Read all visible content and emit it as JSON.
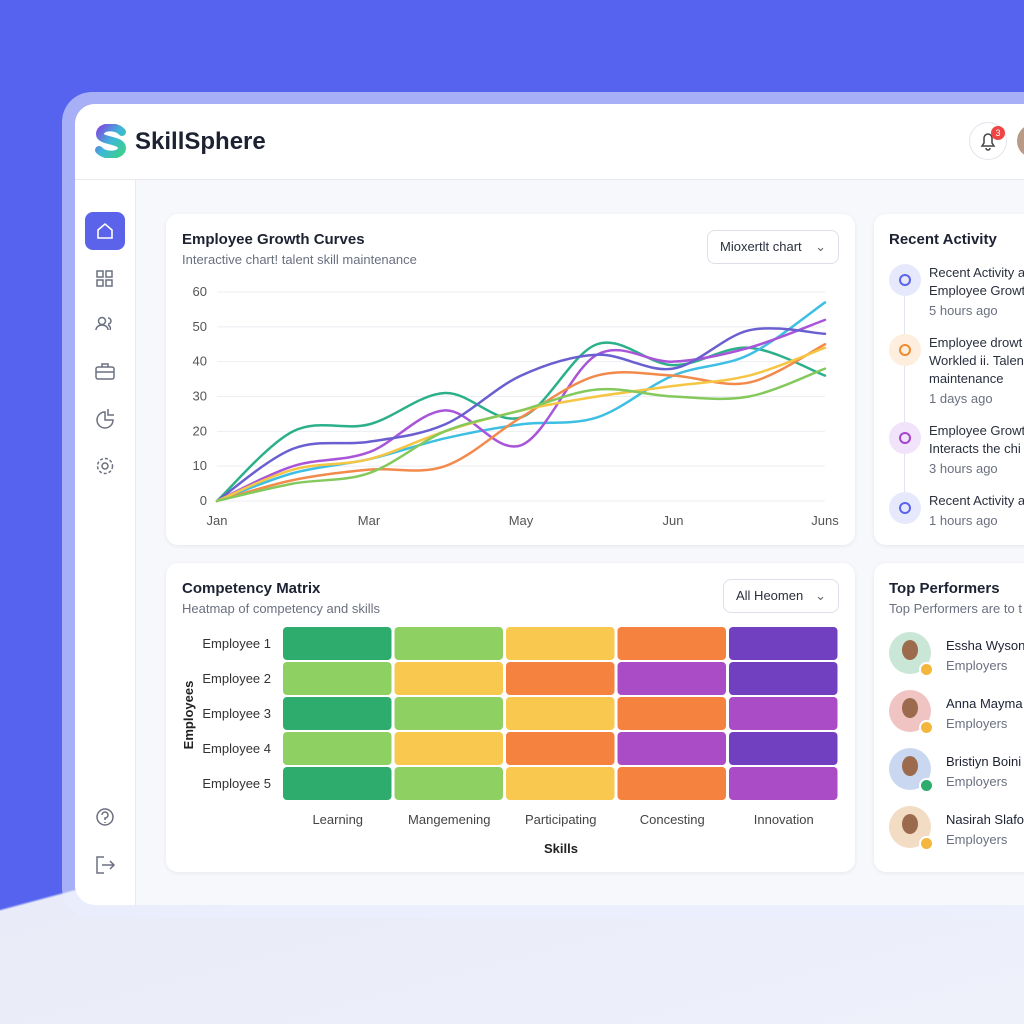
{
  "header": {
    "brand": "SkillSphere",
    "notification_count": "3"
  },
  "chart_data": [
    {
      "type": "line",
      "title": "Employee Growth Curves",
      "subtitle": "Interactive chart! talent skill maintenance",
      "dropdown": "Mioxertlt chart",
      "categories": [
        "Jan",
        null,
        "Mar",
        null,
        "May",
        null,
        "Jun",
        null,
        "Juns"
      ],
      "ylim": [
        0,
        60
      ],
      "yticks": [
        0,
        10,
        20,
        30,
        40,
        50,
        60
      ],
      "grid": true,
      "series": [
        {
          "color": "#2bb08a",
          "values": [
            0,
            20,
            22,
            31,
            24,
            45,
            39,
            44,
            36
          ]
        },
        {
          "color": "#3dbfe3",
          "values": [
            0,
            8,
            12,
            18,
            22,
            24,
            36,
            42,
            57
          ]
        },
        {
          "color": "#a855d9",
          "values": [
            0,
            10,
            14,
            26,
            16,
            42,
            40,
            44,
            52
          ]
        },
        {
          "color": "#6a5fd0",
          "values": [
            0,
            15,
            17,
            22,
            36,
            42,
            38,
            49,
            48
          ]
        },
        {
          "color": "#f28a4c",
          "values": [
            0,
            6,
            9,
            10,
            24,
            36,
            36,
            34,
            45
          ]
        },
        {
          "color": "#f5c544",
          "values": [
            0,
            9,
            12,
            20,
            26,
            30,
            33,
            36,
            44
          ]
        },
        {
          "color": "#84c95c",
          "values": [
            0,
            5,
            8,
            20,
            26,
            32,
            30,
            30,
            38
          ]
        }
      ]
    },
    {
      "type": "heatmap",
      "title": "Competency Matrix",
      "subtitle": "Heatmap of competency and skills",
      "dropdown": "All Heomen",
      "rows": [
        "Employee 1",
        "Employee 2",
        "Employee 3",
        "Employee 4",
        "Employee 5"
      ],
      "columns": [
        "Learning",
        "Mangemening",
        "Participating",
        "Concesting",
        "Innovation"
      ],
      "xlabel": "Skills",
      "ylabel": "Employees",
      "cell_colors": [
        [
          "#2eac6e",
          "#8fd063",
          "#f8c94e",
          "#f5823f",
          "#7040c0"
        ],
        [
          "#8fd063",
          "#f8c94e",
          "#f5823f",
          "#a94cc6",
          "#7040c0"
        ],
        [
          "#2eac6e",
          "#8fd063",
          "#f8c94e",
          "#f5823f",
          "#a94cc6"
        ],
        [
          "#8fd063",
          "#f8c94e",
          "#f5823f",
          "#a94cc6",
          "#7040c0"
        ],
        [
          "#2eac6e",
          "#8fd063",
          "#f8c94e",
          "#f5823f",
          "#a94cc6"
        ]
      ]
    }
  ],
  "recent_activity": {
    "title": "Recent Activity",
    "items": [
      {
        "lines": [
          "Recent Activity a",
          "Employee Growt"
        ],
        "time": "5 hours ago"
      },
      {
        "lines": [
          "Employee drowt",
          "Workled ii. Talen",
          "maintenance"
        ],
        "time": "1 days ago"
      },
      {
        "lines": [
          "Employee Growt",
          "Interacts the chi"
        ],
        "time": "3 hours ago"
      },
      {
        "lines": [
          "Recent Activity a"
        ],
        "time": "1 hours ago"
      }
    ]
  },
  "top_performers": {
    "title": "Top Performers",
    "subtitle": "Top Performers are to t",
    "people": [
      {
        "name": "Essha Wyson",
        "role": "Employers"
      },
      {
        "name": "Anna Mayma",
        "role": "Employers"
      },
      {
        "name": "Bristiyn Boini",
        "role": "Employers"
      },
      {
        "name": "Nasirah Slafo",
        "role": "Employers"
      }
    ]
  }
}
